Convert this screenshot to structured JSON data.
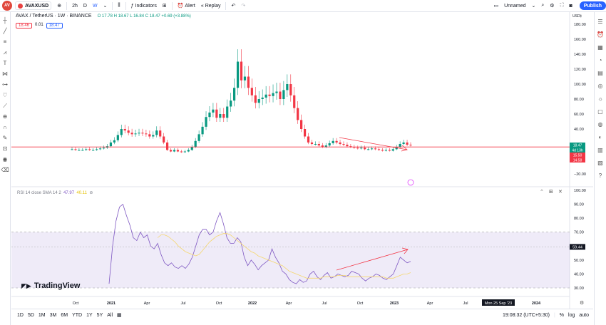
{
  "toolbar": {
    "avatar": "AV",
    "symbol": "AVAXUSD",
    "interval": "2h",
    "interval_d": "D",
    "interval_w": "W",
    "indicators": "Indicators",
    "alert": "Alert",
    "replay": "Replay",
    "layout_name": "Unnamed",
    "publish": "Publish"
  },
  "legend": {
    "title": "AVAX / TetherUS · 1W · BINANCE",
    "ohlc": "O 17.78  H 18.67  L 16.84  C 18.47  +0.69 (+3.88%)",
    "bid": "18.46",
    "spread": "0.01",
    "ask": "18.47"
  },
  "price_axis": {
    "currency": "USD‡",
    "ticks": [
      "180.00",
      "160.00",
      "140.00",
      "120.00",
      "100.00",
      "80.00",
      "60.00",
      "40.00",
      "20.00",
      "−20.00"
    ],
    "badge_last": "18.47",
    "badge_countdown": "4d 13h",
    "badge_red1": "15.50",
    "badge_red2": "14.58"
  },
  "rsi": {
    "label": "RSI 14 close SMA 14 2",
    "rsi_value": "47.97",
    "sma_value": "40.11",
    "ticks": [
      "100.00",
      "90.00",
      "80.00",
      "70.00",
      "60.00",
      "50.00",
      "40.00",
      "30.00"
    ],
    "crosshair_value": "59.44"
  },
  "time_axis": {
    "labels": [
      "Oct",
      "2021",
      "Apr",
      "Jul",
      "Oct",
      "2022",
      "Apr",
      "Jul",
      "Oct",
      "2023",
      "Apr",
      "Jul",
      "2024"
    ],
    "crosshair_date": "Mon 25 Sep '23"
  },
  "bottom": {
    "ranges": [
      "1D",
      "5D",
      "1M",
      "3M",
      "6M",
      "YTD",
      "1Y",
      "5Y",
      "All"
    ],
    "clock": "19:08:32 (UTC+5:30)",
    "percent": "%",
    "log": "log",
    "auto": "auto"
  },
  "brand": "TradingView",
  "colors": {
    "up": "#089981",
    "down": "#f23645",
    "rsi": "#7e57c2",
    "sma": "#f5d76e",
    "accent": "#2962ff"
  }
}
